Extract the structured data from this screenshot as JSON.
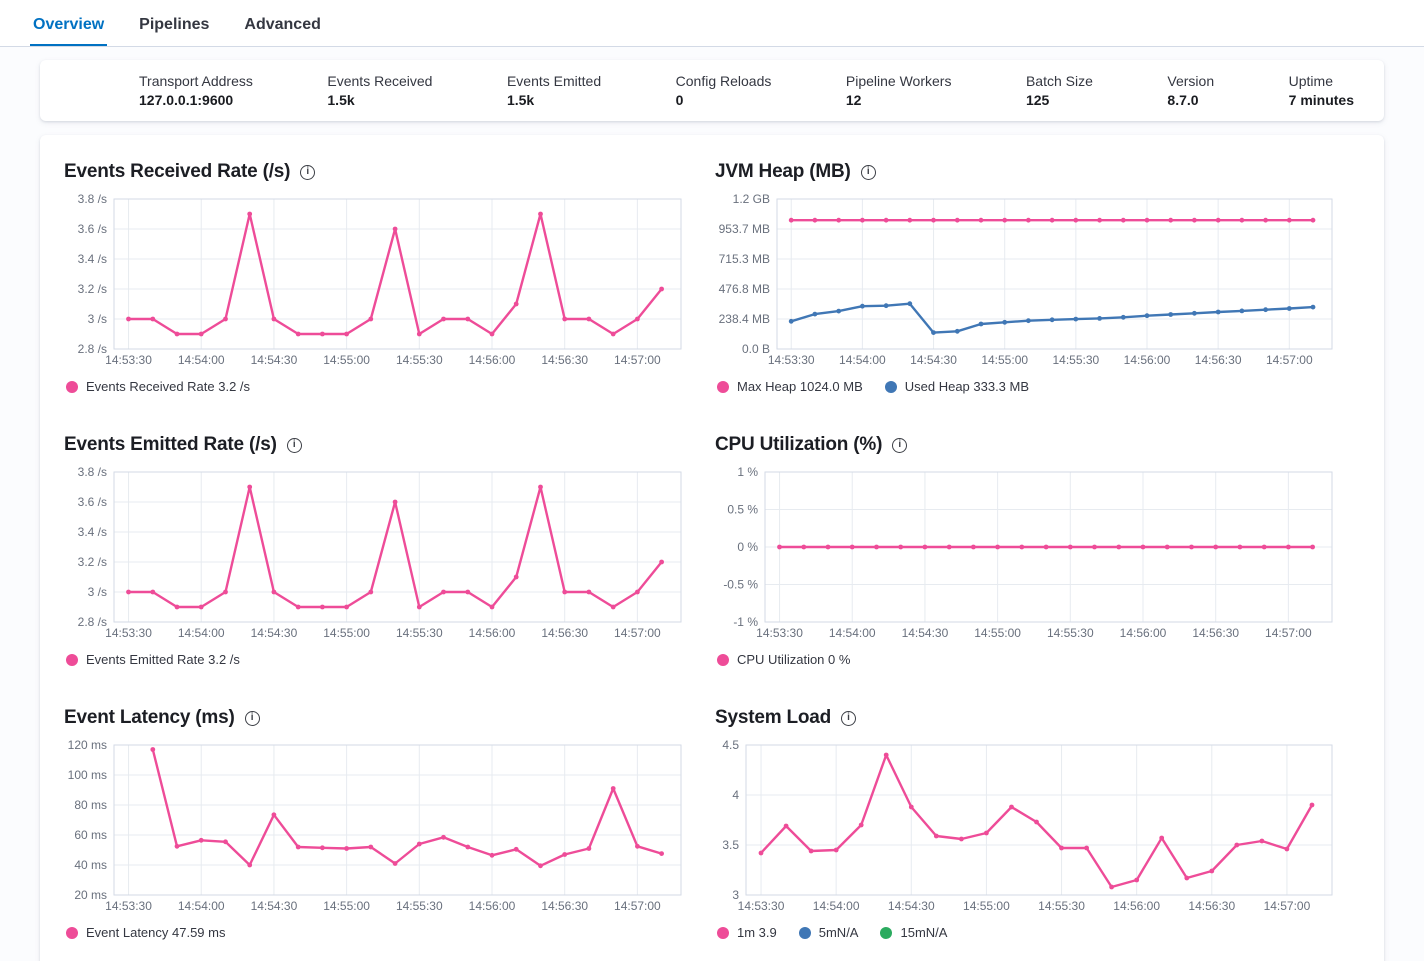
{
  "tabs": [
    {
      "label": "Overview",
      "active": true
    },
    {
      "label": "Pipelines",
      "active": false
    },
    {
      "label": "Advanced",
      "active": false
    }
  ],
  "stats": [
    {
      "label": "Transport Address",
      "value": "127.0.0.1:9600"
    },
    {
      "label": "Events Received",
      "value": "1.5k"
    },
    {
      "label": "Events Emitted",
      "value": "1.5k"
    },
    {
      "label": "Config Reloads",
      "value": "0"
    },
    {
      "label": "Pipeline Workers",
      "value": "12"
    },
    {
      "label": "Batch Size",
      "value": "125"
    },
    {
      "label": "Version",
      "value": "8.7.0"
    },
    {
      "label": "Uptime",
      "value": "7 minutes"
    }
  ],
  "icons": {
    "chart_title_info": "info-icon"
  },
  "colors": {
    "tab_active": "#0071c2",
    "series_pink": "#ee4c98",
    "series_blue": "#4077b5",
    "series_green": "#2bab5f",
    "axis_text": "#69707d",
    "grid_line": "#e7ebf0",
    "plot_border": "#d3dae6"
  },
  "chart_data": [
    {
      "type": "line",
      "title": "Events Received Rate (/s)",
      "x_tick_labels": [
        "14:53:30",
        "14:54:00",
        "14:54:30",
        "14:55:00",
        "14:55:30",
        "14:56:00",
        "14:56:30",
        "14:57:00"
      ],
      "x_tick_seconds": [
        0,
        30,
        60,
        90,
        120,
        150,
        180,
        210
      ],
      "x_domain": [
        -6,
        228
      ],
      "point_interval_s": 10,
      "ylim": [
        2.8,
        3.8
      ],
      "yticks": [
        {
          "v": 3.8,
          "label": "3.8 /s"
        },
        {
          "v": 3.6,
          "label": "3.6 /s"
        },
        {
          "v": 3.4,
          "label": "3.4 /s"
        },
        {
          "v": 3.2,
          "label": "3.2 /s"
        },
        {
          "v": 3.0,
          "label": "3 /s"
        },
        {
          "v": 2.8,
          "label": "2.8 /s"
        }
      ],
      "series": [
        {
          "name": "Events Received Rate",
          "color": "#ee4c98",
          "start_s": 0,
          "values": [
            3,
            3,
            2.9,
            2.9,
            3,
            3.7,
            3,
            2.9,
            2.9,
            2.9,
            3,
            3.6,
            2.9,
            3,
            3,
            2.9,
            3.1,
            3.7,
            3,
            3,
            2.9,
            3,
            3.2
          ]
        }
      ],
      "legend": [
        {
          "label": "Events Received Rate 3.2 /s",
          "color": "#ee4c98"
        }
      ]
    },
    {
      "type": "line",
      "title": "JVM Heap (MB)",
      "x_tick_labels": [
        "14:53:30",
        "14:54:00",
        "14:54:30",
        "14:55:00",
        "14:55:30",
        "14:56:00",
        "14:56:30",
        "14:57:00"
      ],
      "x_tick_seconds": [
        0,
        30,
        60,
        90,
        120,
        150,
        180,
        210
      ],
      "x_domain": [
        -6,
        228
      ],
      "point_interval_s": 10,
      "ylim": [
        0,
        1192.1
      ],
      "yticks": [
        {
          "v": 1192.1,
          "label": "1.2 GB"
        },
        {
          "v": 953.7,
          "label": "953.7 MB"
        },
        {
          "v": 715.3,
          "label": "715.3 MB"
        },
        {
          "v": 476.8,
          "label": "476.8 MB"
        },
        {
          "v": 238.4,
          "label": "238.4 MB"
        },
        {
          "v": 0,
          "label": "0.0 B"
        }
      ],
      "series": [
        {
          "name": "Max Heap",
          "color": "#ee4c98",
          "start_s": 0,
          "values": [
            1024,
            1024,
            1024,
            1024,
            1024,
            1024,
            1024,
            1024,
            1024,
            1024,
            1024,
            1024,
            1024,
            1024,
            1024,
            1024,
            1024,
            1024,
            1024,
            1024,
            1024,
            1024,
            1024
          ]
        },
        {
          "name": "Used Heap",
          "color": "#4077b5",
          "start_s": 0,
          "values": [
            220,
            277,
            301,
            340,
            344,
            360,
            130,
            141,
            199,
            212,
            225,
            232,
            238,
            243,
            252,
            265,
            274,
            284,
            294,
            303,
            312,
            322,
            333.3
          ]
        }
      ],
      "legend": [
        {
          "label": "Max Heap 1024.0 MB",
          "color": "#ee4c98"
        },
        {
          "label": "Used Heap 333.3 MB",
          "color": "#4077b5"
        }
      ]
    },
    {
      "type": "line",
      "title": "Events Emitted Rate (/s)",
      "x_tick_labels": [
        "14:53:30",
        "14:54:00",
        "14:54:30",
        "14:55:00",
        "14:55:30",
        "14:56:00",
        "14:56:30",
        "14:57:00"
      ],
      "x_tick_seconds": [
        0,
        30,
        60,
        90,
        120,
        150,
        180,
        210
      ],
      "x_domain": [
        -6,
        228
      ],
      "point_interval_s": 10,
      "ylim": [
        2.8,
        3.8
      ],
      "yticks": [
        {
          "v": 3.8,
          "label": "3.8 /s"
        },
        {
          "v": 3.6,
          "label": "3.6 /s"
        },
        {
          "v": 3.4,
          "label": "3.4 /s"
        },
        {
          "v": 3.2,
          "label": "3.2 /s"
        },
        {
          "v": 3.0,
          "label": "3 /s"
        },
        {
          "v": 2.8,
          "label": "2.8 /s"
        }
      ],
      "series": [
        {
          "name": "Events Emitted Rate",
          "color": "#ee4c98",
          "start_s": 0,
          "values": [
            3,
            3,
            2.9,
            2.9,
            3,
            3.7,
            3,
            2.9,
            2.9,
            2.9,
            3,
            3.6,
            2.9,
            3,
            3,
            2.9,
            3.1,
            3.7,
            3,
            3,
            2.9,
            3,
            3.2
          ]
        }
      ],
      "legend": [
        {
          "label": "Events Emitted Rate 3.2 /s",
          "color": "#ee4c98"
        }
      ]
    },
    {
      "type": "line",
      "title": "CPU Utilization (%)",
      "x_tick_labels": [
        "14:53:30",
        "14:54:00",
        "14:54:30",
        "14:55:00",
        "14:55:30",
        "14:56:00",
        "14:56:30",
        "14:57:00"
      ],
      "x_tick_seconds": [
        0,
        30,
        60,
        90,
        120,
        150,
        180,
        210
      ],
      "x_domain": [
        -6,
        228
      ],
      "point_interval_s": 10,
      "ylim": [
        -1,
        1
      ],
      "yticks": [
        {
          "v": 1,
          "label": "1 %"
        },
        {
          "v": 0.5,
          "label": "0.5 %"
        },
        {
          "v": 0,
          "label": "0 %"
        },
        {
          "v": -0.5,
          "label": "-0.5 %"
        },
        {
          "v": -1,
          "label": "-1 %"
        }
      ],
      "series": [
        {
          "name": "CPU Utilization",
          "color": "#ee4c98",
          "start_s": 0,
          "values": [
            0,
            0,
            0,
            0,
            0,
            0,
            0,
            0,
            0,
            0,
            0,
            0,
            0,
            0,
            0,
            0,
            0,
            0,
            0,
            0,
            0,
            0,
            0
          ]
        }
      ],
      "legend": [
        {
          "label": "CPU Utilization 0 %",
          "color": "#ee4c98"
        }
      ]
    },
    {
      "type": "line",
      "title": "Event Latency (ms)",
      "x_tick_labels": [
        "14:53:30",
        "14:54:00",
        "14:54:30",
        "14:55:00",
        "14:55:30",
        "14:56:00",
        "14:56:30",
        "14:57:00"
      ],
      "x_tick_seconds": [
        0,
        30,
        60,
        90,
        120,
        150,
        180,
        210
      ],
      "x_domain": [
        -6,
        228
      ],
      "point_interval_s": 10,
      "ylim": [
        20,
        120
      ],
      "yticks": [
        {
          "v": 120,
          "label": "120 ms"
        },
        {
          "v": 100,
          "label": "100 ms"
        },
        {
          "v": 80,
          "label": "80 ms"
        },
        {
          "v": 60,
          "label": "60 ms"
        },
        {
          "v": 40,
          "label": "40 ms"
        },
        {
          "v": 20,
          "label": "20 ms"
        }
      ],
      "series": [
        {
          "name": "Event Latency",
          "color": "#ee4c98",
          "start_s": 10,
          "values": [
            117,
            52.5,
            56.5,
            55.5,
            40,
            73.5,
            52,
            51.5,
            51,
            52,
            41,
            54,
            58.5,
            52,
            46.5,
            50.5,
            39.5,
            47,
            51,
            91,
            52.5,
            47.59
          ]
        }
      ],
      "legend": [
        {
          "label": "Event Latency 47.59 ms",
          "color": "#ee4c98"
        }
      ]
    },
    {
      "type": "line",
      "title": "System Load",
      "x_tick_labels": [
        "14:53:30",
        "14:54:00",
        "14:54:30",
        "14:55:00",
        "14:55:30",
        "14:56:00",
        "14:56:30",
        "14:57:00"
      ],
      "x_tick_seconds": [
        0,
        30,
        60,
        90,
        120,
        150,
        180,
        210
      ],
      "x_domain": [
        -6,
        228
      ],
      "point_interval_s": 10,
      "ylim": [
        3,
        4.5
      ],
      "yticks": [
        {
          "v": 4.5,
          "label": "4.5"
        },
        {
          "v": 4,
          "label": "4"
        },
        {
          "v": 3.5,
          "label": "3.5"
        },
        {
          "v": 3,
          "label": "3"
        }
      ],
      "series": [
        {
          "name": "1m",
          "color": "#ee4c98",
          "start_s": 0,
          "values": [
            3.42,
            3.69,
            3.44,
            3.45,
            3.7,
            4.4,
            3.88,
            3.59,
            3.56,
            3.62,
            3.88,
            3.73,
            3.47,
            3.47,
            3.08,
            3.15,
            3.57,
            3.17,
            3.24,
            3.5,
            3.54,
            3.46,
            3.9
          ]
        },
        {
          "name": "5m",
          "color": "#4077b5",
          "start_s": 0,
          "values": null
        },
        {
          "name": "15m",
          "color": "#2bab5f",
          "start_s": 0,
          "values": null
        }
      ],
      "legend": [
        {
          "label": "1m 3.9",
          "color": "#ee4c98"
        },
        {
          "label": "5mN/A",
          "color": "#4077b5"
        },
        {
          "label": "15mN/A",
          "color": "#2bab5f"
        }
      ]
    }
  ]
}
